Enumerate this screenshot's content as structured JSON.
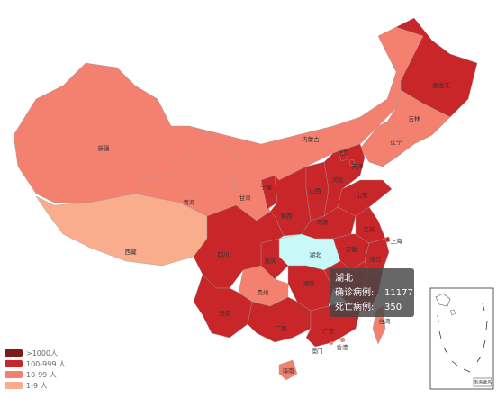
{
  "map": {
    "regions": [
      {
        "name": "新疆",
        "color": "#f4806f"
      },
      {
        "name": "西藏",
        "color": "#f9ad8c"
      },
      {
        "name": "青海",
        "color": "#f4806f"
      },
      {
        "name": "甘肃",
        "color": "#f4806f"
      },
      {
        "name": "内蒙古",
        "color": "#f4806f"
      },
      {
        "name": "黑龙江",
        "color": "#c9262a"
      },
      {
        "name": "吉林",
        "color": "#f4806f"
      },
      {
        "name": "辽宁",
        "color": "#f4806f"
      },
      {
        "name": "宁夏",
        "color": "#c9262a"
      },
      {
        "name": "陕西",
        "color": "#c9262a"
      },
      {
        "name": "山西",
        "color": "#c9262a"
      },
      {
        "name": "河北",
        "color": "#c9262a"
      },
      {
        "name": "山东",
        "color": "#c9262a"
      },
      {
        "name": "河南",
        "color": "#c9262a"
      },
      {
        "name": "江苏",
        "color": "#c9262a"
      },
      {
        "name": "安徽",
        "color": "#c9262a"
      },
      {
        "name": "湖北",
        "color": "#c8f8f8"
      },
      {
        "name": "重庆",
        "color": "#c9262a"
      },
      {
        "name": "四川",
        "color": "#c9262a"
      },
      {
        "name": "浙江",
        "color": "#c9262a"
      },
      {
        "name": "江西",
        "color": "#c9262a"
      },
      {
        "name": "湖南",
        "color": "#c9262a"
      },
      {
        "name": "贵州",
        "color": "#f4806f"
      },
      {
        "name": "云南",
        "color": "#c9262a"
      },
      {
        "name": "广西",
        "color": "#c9262a"
      },
      {
        "name": "广东",
        "color": "#c9262a"
      },
      {
        "name": "福建",
        "color": "#c9262a"
      },
      {
        "name": "台湾",
        "color": "#f4806f"
      },
      {
        "name": "海南",
        "color": "#f4806f"
      },
      {
        "name": "北京",
        "color": "#c9262a"
      },
      {
        "name": "天津",
        "color": "#c9262a"
      },
      {
        "name": "上海",
        "color": "#c9262a"
      },
      {
        "name": "香港",
        "color": "#f4806f"
      },
      {
        "name": "澳门",
        "color": "#f4806f"
      }
    ],
    "legend": [
      {
        "label": ">1000人",
        "color": "#7f1a1a"
      },
      {
        "label": "100-999 人",
        "color": "#c9262a"
      },
      {
        "label": "10-99 人",
        "color": "#f4806f"
      },
      {
        "label": "1-9 人",
        "color": "#f9ad8c"
      }
    ],
    "tooltip": {
      "title": "湖北",
      "rows": [
        {
          "label": "确诊病例:",
          "value": 11177
        },
        {
          "label": "死亡病例:",
          "value": 350
        }
      ]
    },
    "inset_label": "南海诸岛"
  }
}
